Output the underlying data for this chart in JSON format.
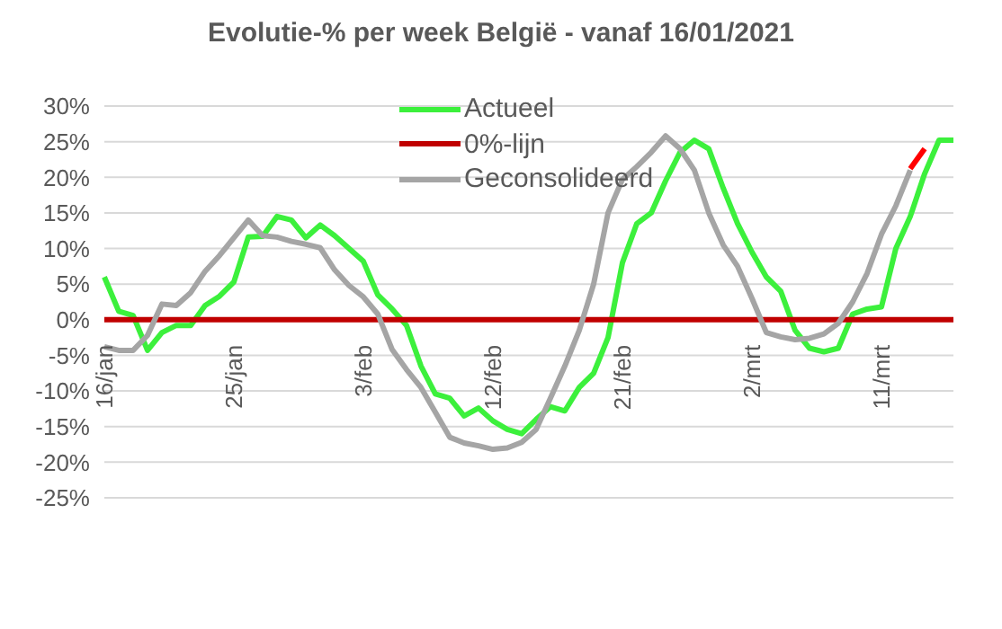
{
  "chart_data": {
    "type": "line",
    "title": "Evolutie-% per week België - vanaf 16/01/2021",
    "categories": [
      "16/jan",
      null,
      null,
      null,
      null,
      null,
      null,
      null,
      null,
      "25/jan",
      null,
      null,
      null,
      null,
      null,
      null,
      null,
      null,
      "3/feb",
      null,
      null,
      null,
      null,
      null,
      null,
      null,
      null,
      "12/feb",
      null,
      null,
      null,
      null,
      null,
      null,
      null,
      null,
      "21/feb",
      null,
      null,
      null,
      null,
      null,
      null,
      null,
      null,
      "2/mrt",
      null,
      null,
      null,
      null,
      null,
      null,
      null,
      null,
      "11/mrt",
      null,
      null,
      null,
      null,
      null
    ],
    "series": [
      {
        "name": "Actueel",
        "color": "#3cf03c",
        "values": [
          6,
          1.2,
          0.6,
          -4.3,
          -1.8,
          -0.8,
          -0.8,
          2,
          3.3,
          5.3,
          11.6,
          11.7,
          14.5,
          14,
          11.5,
          13.3,
          11.8,
          10,
          8.2,
          3.5,
          1.5,
          -0.8,
          -6.5,
          -10.4,
          -11,
          -13.5,
          -12.4,
          -14.2,
          -15.4,
          -16,
          -14,
          -12.2,
          -12.8,
          -9.5,
          -7.5,
          -2.5,
          8,
          13.5,
          15,
          19.5,
          23.5,
          25.2,
          24,
          18.5,
          13.5,
          9.5,
          6,
          4,
          -1.5,
          -4,
          -4.5,
          -4,
          0.8,
          1.5,
          1.8,
          10,
          14.5,
          20.5,
          25.2,
          25.2
        ]
      },
      {
        "name": "0%-lijn",
        "color": "#c00000",
        "values": [
          0,
          0,
          0,
          0,
          0,
          0,
          0,
          0,
          0,
          0,
          0,
          0,
          0,
          0,
          0,
          0,
          0,
          0,
          0,
          0,
          0,
          0,
          0,
          0,
          0,
          0,
          0,
          0,
          0,
          0,
          0,
          0,
          0,
          0,
          0,
          0,
          0,
          0,
          0,
          0,
          0,
          0,
          0,
          0,
          0,
          0,
          0,
          0,
          0,
          0,
          0,
          0,
          0,
          0,
          0,
          0,
          0,
          0,
          0,
          0
        ]
      },
      {
        "name": "Geconsolideerd",
        "color": "#a5a5a5",
        "values": [
          -3.8,
          -4.3,
          -4.3,
          -2.2,
          2.2,
          2,
          3.8,
          6.8,
          9,
          11.5,
          14,
          11.8,
          11.6,
          11,
          10.6,
          10.1,
          7,
          4.8,
          3.2,
          0.8,
          -4.2,
          -7,
          -9.5,
          -13,
          -16.5,
          -17.3,
          -17.7,
          -18.2,
          -18,
          -17.2,
          -15.4,
          -11,
          -6.5,
          -1.5,
          5,
          15,
          19.7,
          21.5,
          23.5,
          25.8,
          24,
          21,
          15,
          10.5,
          7.5,
          3,
          -1.8,
          -2.4,
          -2.8,
          -2.6,
          -2,
          -0.5,
          2.5,
          6.5,
          12,
          16,
          21,
          null,
          null,
          null
        ]
      },
      {
        "color": "#ff0000",
        "values": [
          null,
          null,
          null,
          null,
          null,
          null,
          null,
          null,
          null,
          null,
          null,
          null,
          null,
          null,
          null,
          null,
          null,
          null,
          null,
          null,
          null,
          null,
          null,
          null,
          null,
          null,
          null,
          null,
          null,
          null,
          null,
          null,
          null,
          null,
          null,
          null,
          null,
          null,
          null,
          null,
          null,
          null,
          null,
          null,
          null,
          null,
          null,
          null,
          null,
          null,
          null,
          null,
          null,
          null,
          null,
          null,
          21.2,
          24,
          null,
          null
        ]
      }
    ],
    "ylim": [
      -25,
      30
    ],
    "yticks": [
      {
        "value": -25,
        "label": "-25%"
      },
      {
        "value": -20,
        "label": "-20%"
      },
      {
        "value": -15,
        "label": "-15%"
      },
      {
        "value": -10,
        "label": "-10%"
      },
      {
        "value": -5,
        "label": "-5%"
      },
      {
        "value": 0,
        "label": "0%"
      },
      {
        "value": 5,
        "label": "5%"
      },
      {
        "value": 10,
        "label": "10%"
      },
      {
        "value": 15,
        "label": "15%"
      },
      {
        "value": 20,
        "label": "20%"
      },
      {
        "value": 25,
        "label": "25%"
      },
      {
        "value": 30,
        "label": "30%"
      }
    ],
    "grid": "y",
    "legend": "top",
    "marker": "none",
    "line_style": "solid"
  }
}
